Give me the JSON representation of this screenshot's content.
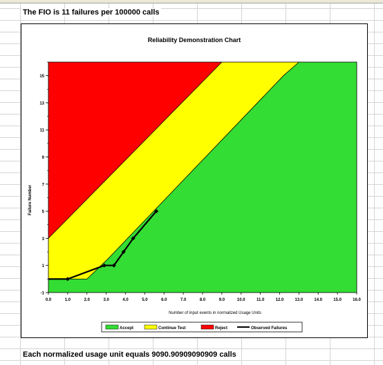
{
  "sheet": {
    "fio_text": "The FIO is 11 failures per 100000 calls",
    "unit_text": "Each normalized usage unit equals 9090.90909090909 calls"
  },
  "chart_data": {
    "type": "area",
    "title": "Reliability Demonstration Chart",
    "xlabel": "Number of input events in normalized Usage Units",
    "ylabel": "Failure Number",
    "xlim": [
      0,
      16
    ],
    "ylim": [
      -1,
      16
    ],
    "xticks": [
      "0.0",
      "1.0",
      "2.0",
      "3.0",
      "4.0",
      "5.0",
      "6.0",
      "7.0",
      "8.0",
      "9.0",
      "10.0",
      "11.0",
      "12.0",
      "13.0",
      "14.0",
      "15.0",
      "16.0"
    ],
    "yticks": [
      "-1",
      "1",
      "3",
      "5",
      "7",
      "9",
      "11",
      "13",
      "15"
    ],
    "regions": [
      {
        "name": "Accept",
        "color": "#33dd33"
      },
      {
        "name": "Continue Test",
        "color": "#ffff00"
      },
      {
        "name": "Reject",
        "color": "#ff0000"
      }
    ],
    "boundaries": {
      "reject_line": [
        [
          0,
          3
        ],
        [
          0.9,
          4.3
        ],
        [
          9.0,
          16
        ]
      ],
      "accept_line": [
        [
          0,
          0
        ],
        [
          2.0,
          0
        ],
        [
          3.1,
          1.5
        ],
        [
          12.2,
          15
        ],
        [
          13.0,
          16
        ]
      ]
    },
    "series": [
      {
        "name": "Observed Failures",
        "color": "#000000",
        "x": [
          0,
          1.0,
          2.9,
          3.4,
          3.9,
          4.4,
          5.6
        ],
        "y": [
          0,
          0,
          1,
          1,
          2,
          3,
          5
        ]
      }
    ],
    "legend": {
      "position": "bottom",
      "entries": [
        "Accept",
        "Continue Test",
        "Reject",
        "Observed Failures"
      ]
    }
  }
}
